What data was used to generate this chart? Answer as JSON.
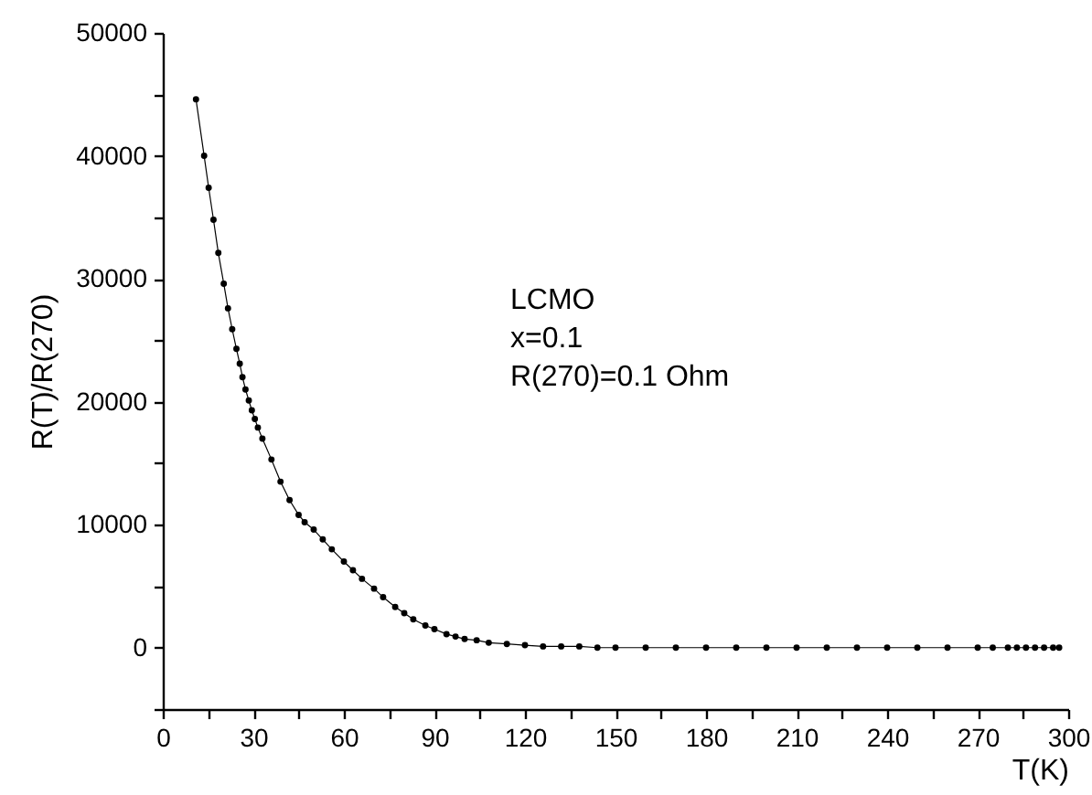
{
  "chart_data": {
    "type": "line",
    "xlabel": "T(K)",
    "ylabel": "R(T)/R(270)",
    "annotations": [
      "LCMO",
      "x=0.1",
      "R(270)=0.1 Ohm"
    ],
    "xlim": [
      0,
      300
    ],
    "ylim": [
      -5000,
      50000
    ],
    "xticks": [
      0,
      {
        "value": 15,
        "label": null
      },
      30,
      {
        "value": 45,
        "label": null
      },
      60,
      {
        "value": 75,
        "label": null
      },
      90,
      {
        "value": 105,
        "label": null
      },
      120,
      {
        "value": 135,
        "label": null
      },
      150,
      {
        "value": 165,
        "label": null
      },
      180,
      {
        "value": 195,
        "label": null
      },
      210,
      {
        "value": 225,
        "label": null
      },
      240,
      {
        "value": 255,
        "label": null
      },
      270,
      {
        "value": 285,
        "label": null
      },
      300
    ],
    "yticks": [
      {
        "value": -5000,
        "label": null
      },
      0,
      {
        "value": 5000,
        "label": null
      },
      10000,
      {
        "value": 15000,
        "label": null
      },
      20000,
      {
        "value": 25000,
        "label": null
      },
      30000,
      {
        "value": 35000,
        "label": null
      },
      40000,
      {
        "value": 45000,
        "label": null
      },
      50000
    ],
    "grid": false,
    "marker": "circle",
    "line_style": "solid",
    "series": [
      {
        "color": "#000000",
        "x": [
          11,
          13.7,
          15.2,
          16.8,
          18.4,
          20.2,
          21.6,
          23,
          24.4,
          25.5,
          26.4,
          27.4,
          28.5,
          29.5,
          30.5,
          31.5,
          33,
          36,
          39,
          42,
          45,
          47,
          50,
          53,
          56,
          60,
          63,
          66,
          70,
          73,
          77,
          80,
          83,
          87,
          90,
          94,
          97,
          100,
          104,
          108,
          114,
          120,
          126,
          132,
          138,
          144,
          150,
          160,
          170,
          180,
          190,
          200,
          210,
          220,
          230,
          240,
          250,
          260,
          270,
          275,
          280,
          283,
          286,
          289,
          292,
          295,
          297
        ],
        "values": [
          44600,
          40000,
          37400,
          34800,
          32100,
          29600,
          27600,
          25900,
          24300,
          23100,
          22000,
          21000,
          20100,
          19300,
          18600,
          17900,
          17000,
          15300,
          13500,
          12000,
          10800,
          10200,
          9600,
          8800,
          8000,
          7000,
          6300,
          5600,
          4800,
          4100,
          3300,
          2800,
          2300,
          1800,
          1500,
          1100,
          900,
          700,
          600,
          400,
          300,
          200,
          100,
          100,
          100,
          0,
          0,
          0,
          0,
          0,
          0,
          0,
          0,
          0,
          0,
          0,
          0,
          0,
          0,
          0,
          0,
          0,
          0,
          0,
          0,
          0,
          0
        ]
      }
    ]
  }
}
